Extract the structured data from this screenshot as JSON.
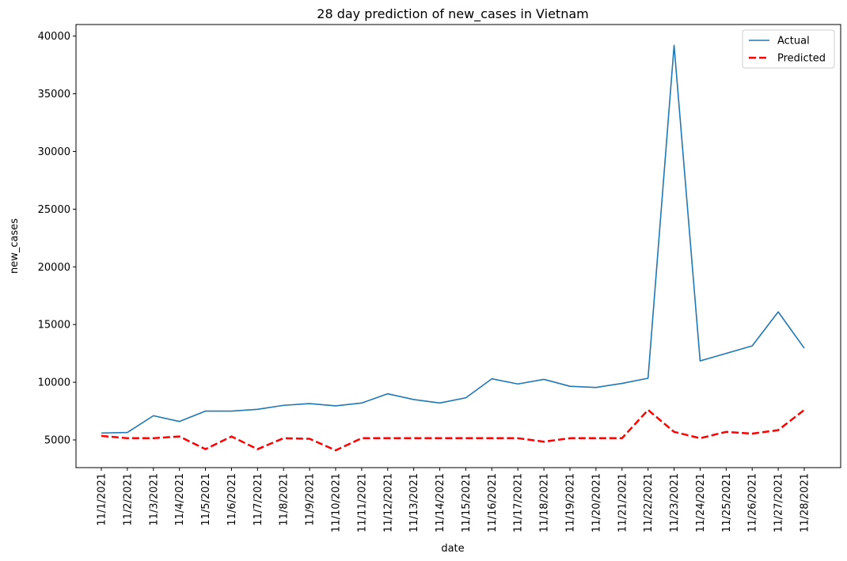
{
  "chart_data": {
    "type": "line",
    "title": "28 day prediction of new_cases in Vietnam",
    "xlabel": "date",
    "ylabel": "new_cases",
    "categories": [
      "11/1/2021",
      "11/2/2021",
      "11/3/2021",
      "11/4/2021",
      "11/5/2021",
      "11/6/2021",
      "11/7/2021",
      "11/8/2021",
      "11/9/2021",
      "11/10/2021",
      "11/11/2021",
      "11/12/2021",
      "11/13/2021",
      "11/14/2021",
      "11/15/2021",
      "11/16/2021",
      "11/17/2021",
      "11/18/2021",
      "11/19/2021",
      "11/20/2021",
      "11/21/2021",
      "11/22/2021",
      "11/23/2021",
      "11/24/2021",
      "11/25/2021",
      "11/26/2021",
      "11/27/2021",
      "11/28/2021"
    ],
    "ylim": [
      2600,
      41000
    ],
    "yticks": [
      5000,
      10000,
      15000,
      20000,
      25000,
      30000,
      35000,
      40000
    ],
    "grid": false,
    "legend_position": "top-right",
    "series": [
      {
        "name": "Actual",
        "color": "#1f77b4",
        "style": "solid",
        "values": [
          5600,
          5650,
          7100,
          6600,
          7500,
          7500,
          7650,
          8000,
          8150,
          7950,
          8200,
          9000,
          8500,
          8200,
          8650,
          10300,
          9850,
          10250,
          9650,
          9550,
          9900,
          10350,
          39200,
          11850,
          12500,
          13150,
          16100,
          12950
        ]
      },
      {
        "name": "Predicted",
        "color": "#ff0000",
        "style": "dashed",
        "values": [
          5350,
          5150,
          5150,
          5300,
          4200,
          5300,
          4200,
          5150,
          5100,
          4100,
          5150,
          5150,
          5150,
          5150,
          5150,
          5150,
          5150,
          4850,
          5150,
          5150,
          5150,
          7600,
          5700,
          5150,
          5700,
          5550,
          5850,
          7600
        ]
      }
    ]
  }
}
